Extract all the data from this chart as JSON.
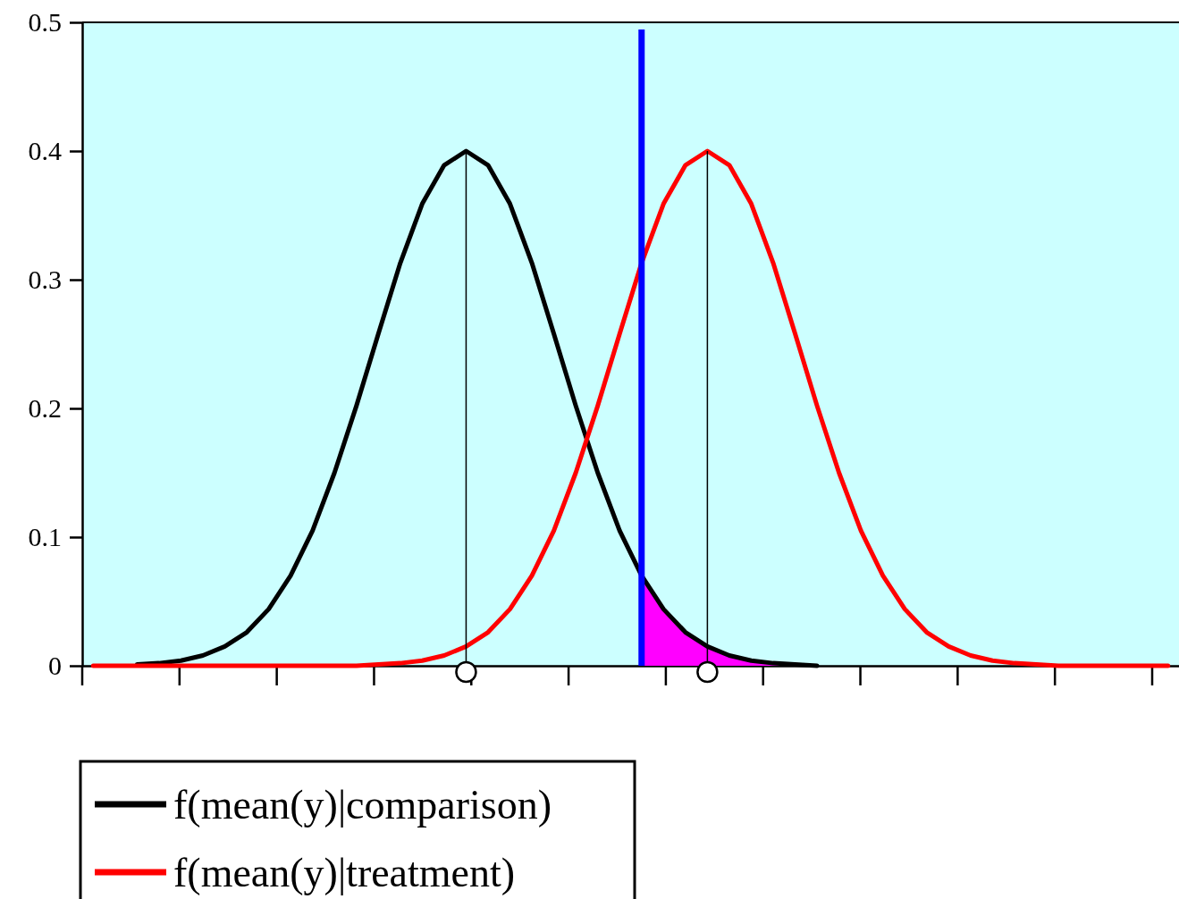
{
  "chart_data": {
    "type": "line",
    "categories": [
      null,
      null,
      null,
      null,
      null,
      null,
      null,
      null,
      null,
      null,
      null,
      null,
      null,
      null,
      null,
      null,
      null,
      null,
      null,
      null,
      null,
      null,
      null,
      null,
      null,
      null,
      null,
      null,
      null,
      null,
      null,
      null,
      null,
      null,
      null,
      null,
      null,
      null,
      null,
      null,
      null,
      null,
      null,
      null,
      null,
      null,
      null,
      null,
      null,
      null
    ],
    "series": [
      {
        "name": "f(mean(y)|comparison)",
        "color": "#000000",
        "values": [
          null,
          null,
          0.001,
          0.002,
          0.004,
          0.008,
          0.015,
          0.026,
          0.044,
          0.07,
          0.105,
          0.15,
          0.202,
          0.258,
          0.313,
          0.359,
          0.389,
          0.4,
          0.389,
          0.359,
          0.313,
          0.258,
          0.202,
          0.15,
          0.105,
          0.07,
          0.044,
          0.026,
          0.015,
          0.008,
          0.004,
          0.002,
          0.001,
          0,
          null,
          null,
          null,
          null,
          null,
          null,
          null,
          null,
          null,
          null,
          null,
          null,
          null,
          null,
          null,
          null
        ]
      },
      {
        "name": "f(mean(y)|treatment)",
        "color": "#ff0000",
        "values": [
          0,
          0,
          0,
          0,
          0,
          0,
          0,
          0,
          0,
          0,
          0,
          0,
          0,
          0.001,
          0.002,
          0.004,
          0.008,
          0.015,
          0.026,
          0.044,
          0.07,
          0.105,
          0.15,
          0.202,
          0.258,
          0.313,
          0.359,
          0.389,
          0.4,
          0.389,
          0.359,
          0.313,
          0.258,
          0.202,
          0.15,
          0.105,
          0.07,
          0.044,
          0.026,
          0.015,
          0.008,
          0.004,
          0.002,
          0.001,
          0,
          0,
          0,
          0,
          0,
          0
        ]
      },
      {
        "type": "area",
        "color": "#ff00ff",
        "values": [
          null,
          null,
          null,
          null,
          null,
          null,
          null,
          null,
          null,
          null,
          null,
          null,
          null,
          null,
          null,
          null,
          null,
          null,
          null,
          null,
          null,
          null,
          null,
          null,
          null,
          0.07,
          0.044,
          0.026,
          0.015,
          0.008,
          0.004,
          0.002,
          0.001,
          null,
          null,
          null,
          null,
          null,
          null,
          null,
          null,
          null,
          null,
          null,
          null,
          null,
          null,
          null,
          null,
          null
        ]
      }
    ],
    "ylim": [
      0,
      0.5
    ],
    "yticks": [
      0,
      0.1,
      0.2,
      0.3,
      0.4,
      0.5
    ],
    "legend": "bottom left",
    "grid": false
  }
}
